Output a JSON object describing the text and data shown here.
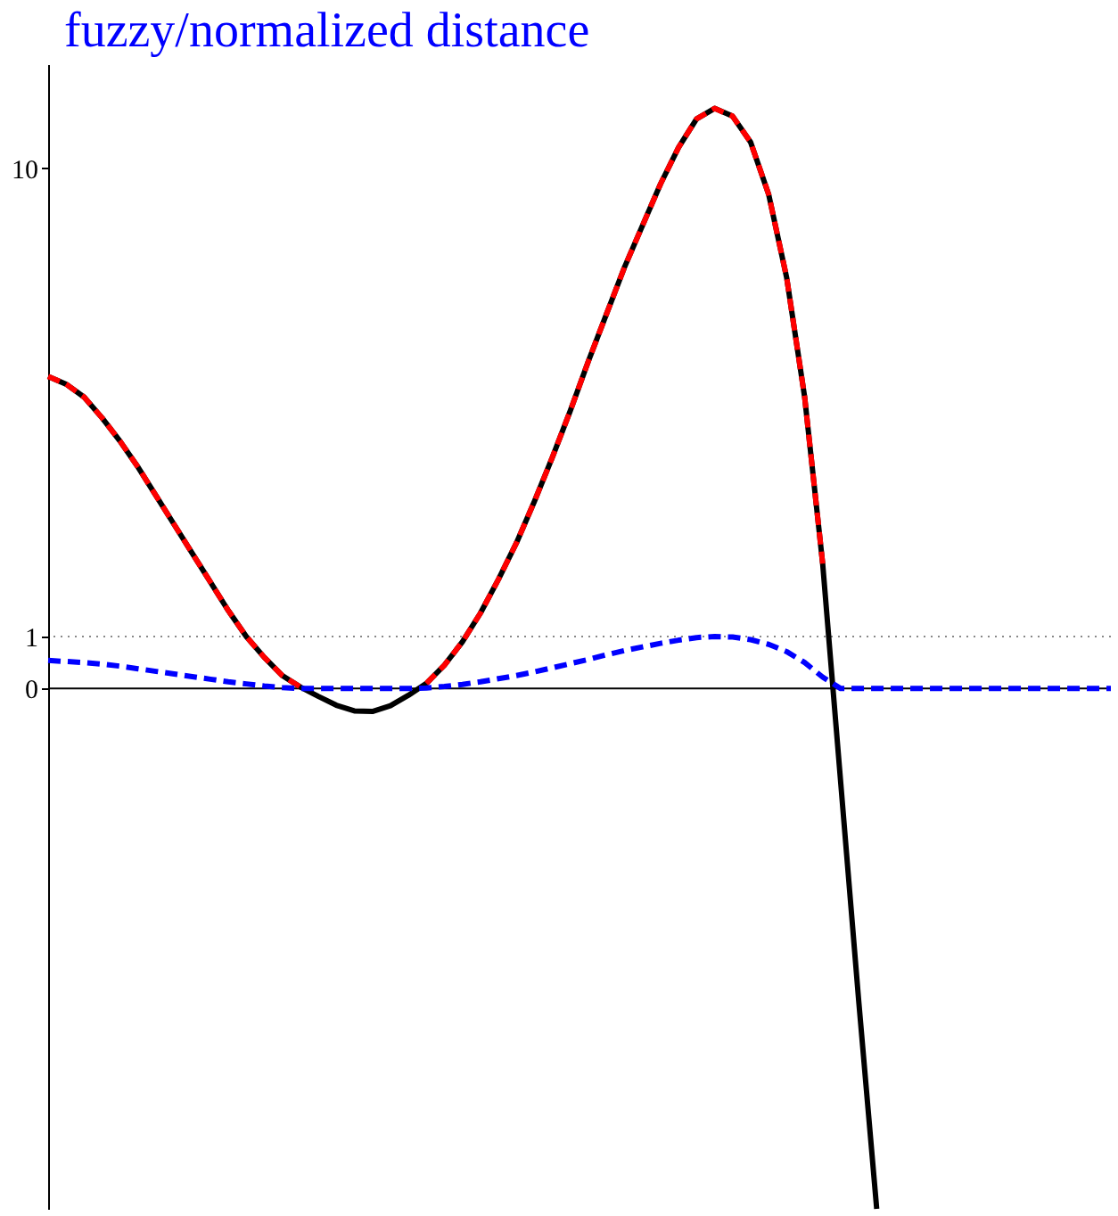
{
  "chart_data": {
    "type": "line",
    "title": "fuzzy/normalized distance",
    "categories": [
      null,
      null,
      null,
      null,
      null,
      null,
      null,
      null,
      null,
      null,
      null,
      null,
      null,
      null,
      null,
      null,
      null,
      null,
      null,
      null,
      null,
      null,
      null,
      null,
      null,
      null,
      null,
      null,
      null,
      null,
      null,
      null,
      null,
      null,
      null,
      null,
      null,
      null,
      null,
      null,
      null,
      null,
      null,
      null,
      null,
      null,
      null,
      null,
      null,
      null,
      null,
      null,
      null,
      null,
      null,
      null,
      null,
      null,
      null,
      null
    ],
    "series": [
      {
        "color": "#000000",
        "line_style": "solid",
        "values": [
          6.0,
          5.85,
          5.6,
          5.2,
          4.75,
          4.25,
          3.7,
          3.15,
          2.6,
          2.05,
          1.5,
          1.0,
          0.6,
          0.25,
          0.03,
          -0.15,
          -0.32,
          -0.43,
          -0.44,
          -0.33,
          -0.13,
          0.1,
          0.45,
          0.9,
          1.45,
          2.1,
          2.8,
          3.6,
          4.45,
          5.35,
          6.3,
          7.2,
          8.1,
          8.9,
          9.7,
          10.4,
          10.95,
          11.15,
          11.0,
          10.5,
          9.5,
          7.9,
          5.6,
          2.4,
          -1.8,
          -6.0,
          -10,
          null,
          null,
          null,
          null,
          null,
          null,
          null,
          null,
          null,
          null,
          null,
          null,
          null
        ]
      },
      {
        "color": "#ff0000",
        "line_style": "dashed",
        "values": [
          6.0,
          5.85,
          5.6,
          5.2,
          4.75,
          4.25,
          3.7,
          3.15,
          2.6,
          2.05,
          1.5,
          1.0,
          0.6,
          0.25,
          0.03,
          null,
          null,
          null,
          null,
          null,
          null,
          0.1,
          0.45,
          0.9,
          1.45,
          2.1,
          2.8,
          3.6,
          4.45,
          5.35,
          6.3,
          7.2,
          8.1,
          8.9,
          9.7,
          10.4,
          10.95,
          11.15,
          11.0,
          10.5,
          9.5,
          7.9,
          5.6,
          2.4,
          null,
          null,
          null,
          null,
          null,
          null,
          null,
          null,
          null,
          null,
          null,
          null,
          null,
          null,
          null,
          null
        ]
      },
      {
        "color": "#0000ff",
        "line_style": "dashed",
        "values": [
          0.54,
          0.52,
          0.5,
          0.47,
          0.43,
          0.38,
          0.33,
          0.28,
          0.23,
          0.18,
          0.13,
          0.09,
          0.05,
          0.02,
          0,
          0,
          0,
          0,
          0,
          0,
          0,
          0.01,
          0.04,
          0.08,
          0.13,
          0.19,
          0.25,
          0.32,
          0.4,
          0.48,
          0.56,
          0.65,
          0.73,
          0.8,
          0.87,
          0.93,
          0.98,
          1.0,
          0.99,
          0.94,
          0.85,
          0.71,
          0.5,
          0.22,
          0,
          0,
          0,
          0,
          0,
          0,
          0,
          0,
          0,
          0,
          0,
          0,
          0,
          0,
          0,
          0
        ]
      }
    ],
    "ylim": [
      -10,
      12
    ],
    "yticks": [
      0,
      1,
      10
    ],
    "tick_labels": "y",
    "grid": false,
    "ref_lines": [
      {
        "axis": "y",
        "value": 1,
        "line_style": "dotted",
        "color": "#888888"
      }
    ]
  }
}
